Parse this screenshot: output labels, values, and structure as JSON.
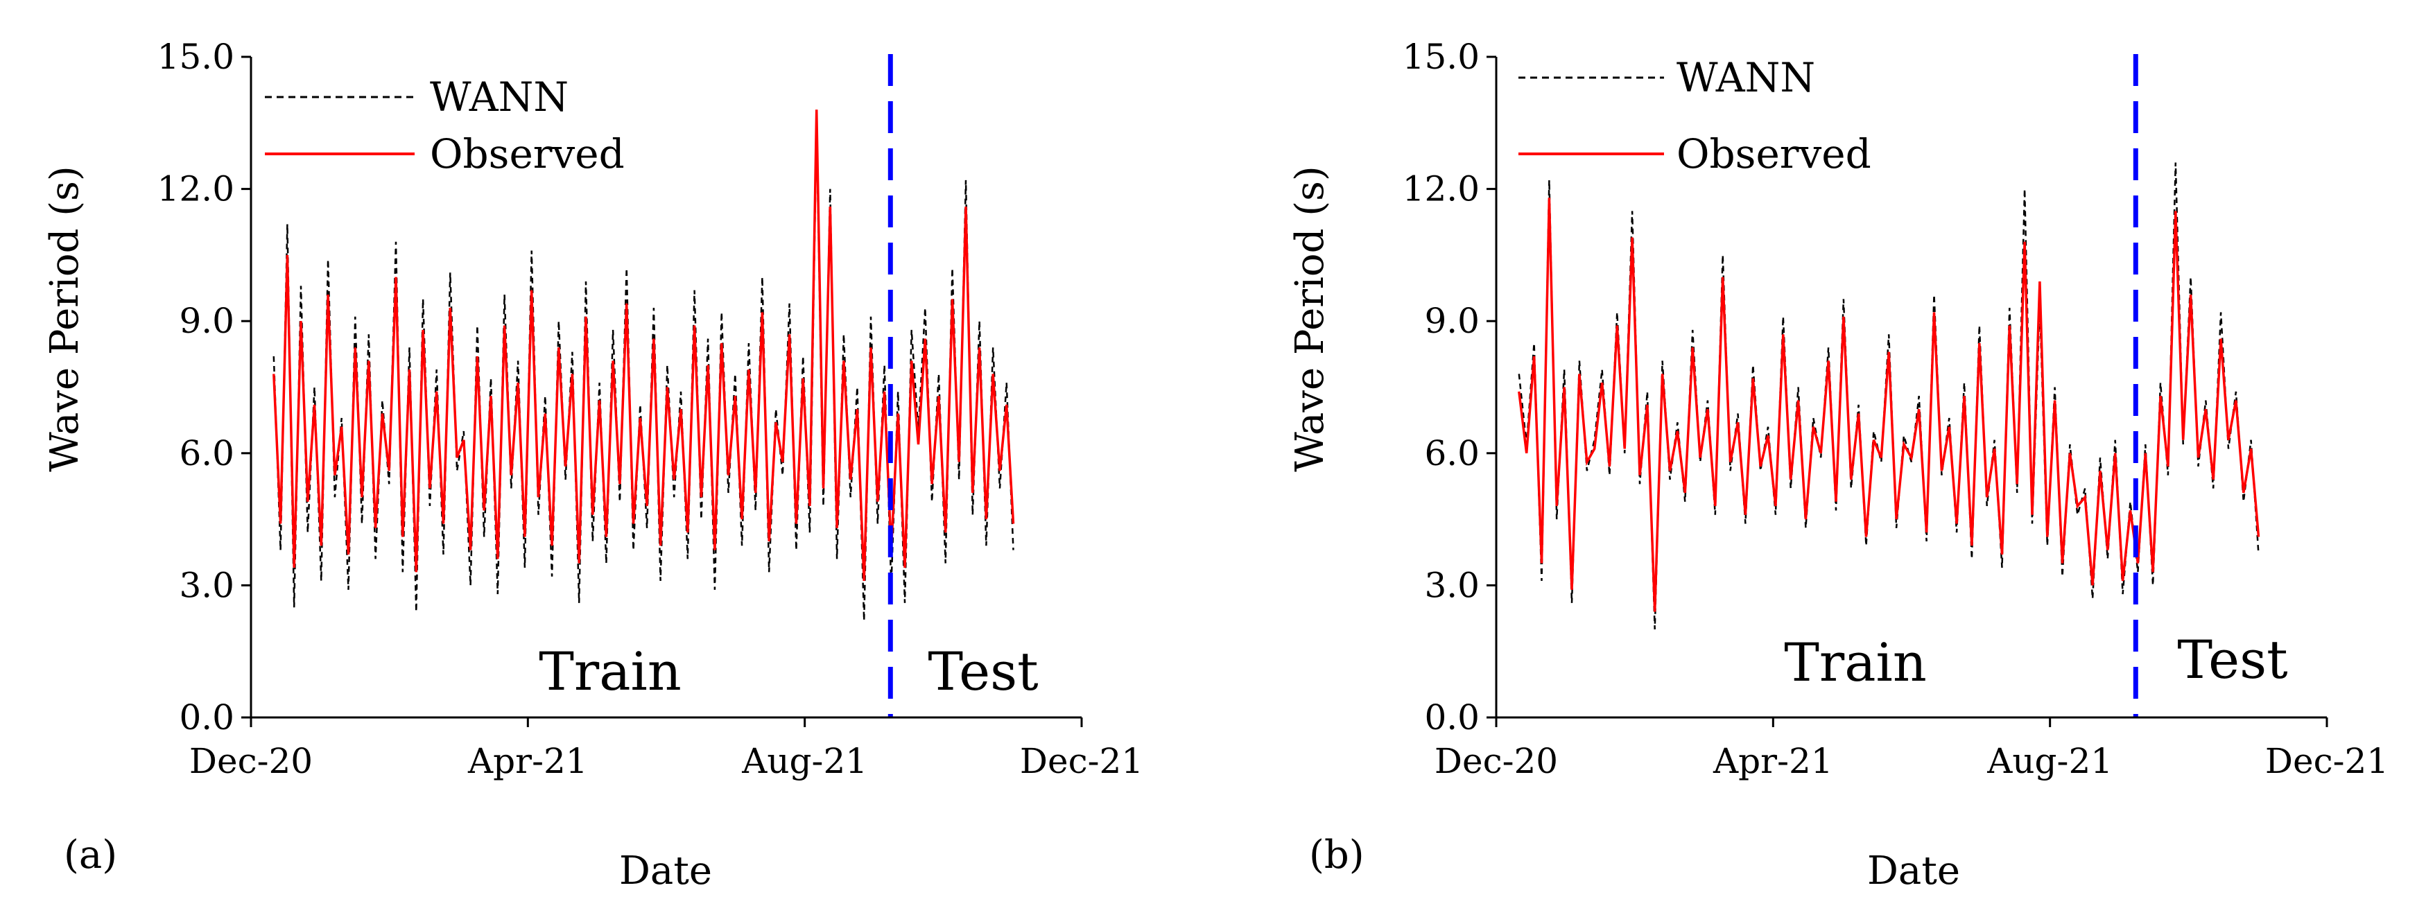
{
  "figure": {
    "panels": [
      "a",
      "b"
    ]
  },
  "chart_data": [
    {
      "panel_label": "(a)",
      "type": "line",
      "title": "",
      "xlabel": "Date",
      "ylabel": "Wave Period (s)",
      "x_ticks": [
        "Dec-20",
        "Apr-21",
        "Aug-21",
        "Dec-21"
      ],
      "y_ticks": [
        "0.0",
        "3.0",
        "6.0",
        "9.0",
        "12.0",
        "15.0"
      ],
      "ylim": [
        0,
        15
      ],
      "x_range": [
        "2020-12-01",
        "2021-12-01"
      ],
      "legend": {
        "position": "top-left",
        "entries": [
          "WANN",
          "Observed"
        ]
      },
      "split": {
        "date": "2021-09-08",
        "left_label": "Train",
        "right_label": "Test",
        "line_color": "#0000FF"
      },
      "data_start": "2020-12-11",
      "data_end": "2021-11-01",
      "series": [
        {
          "name": "WANN",
          "color": "#000000",
          "dash": "dashed",
          "values": [
            8.2,
            3.8,
            11.2,
            2.5,
            9.8,
            4.2,
            7.5,
            3.1,
            10.4,
            5.0,
            6.8,
            2.9,
            9.1,
            4.4,
            8.7,
            3.6,
            7.2,
            5.3,
            10.8,
            3.3,
            8.4,
            2.4,
            9.5,
            4.8,
            7.9,
            3.7,
            10.1,
            5.6,
            6.5,
            3.0,
            8.9,
            4.1,
            7.7,
            2.8,
            9.6,
            5.2,
            8.1,
            3.4,
            10.6,
            4.6,
            7.3,
            3.2,
            9.0,
            5.4,
            8.3,
            2.6,
            9.9,
            4.0,
            7.6,
            3.5,
            8.8,
            4.9,
            10.2,
            3.8,
            7.1,
            4.3,
            9.3,
            3.1,
            8.0,
            5.0,
            7.4,
            3.6,
            9.7,
            4.5,
            8.6,
            2.9,
            9.2,
            5.1,
            7.8,
            3.9,
            8.5,
            4.7,
            10.0,
            3.3,
            7.0,
            5.5,
            9.4,
            3.8,
            8.2,
            4.2,
            13.5,
            4.8,
            12.0,
            3.6,
            8.7,
            5.0,
            7.5,
            2.2,
            9.1,
            4.4,
            8.0,
            3.0,
            7.4,
            2.6,
            8.8,
            6.5,
            9.3,
            4.9,
            7.8,
            3.5,
            10.2,
            5.4,
            12.2,
            4.6,
            9.0,
            3.9,
            8.4,
            5.2,
            7.6,
            3.8
          ]
        },
        {
          "name": "Observed",
          "color": "#FF0000",
          "dash": "solid",
          "values": [
            7.8,
            4.4,
            10.5,
            3.4,
            9.0,
            4.9,
            7.1,
            3.9,
            9.6,
            5.5,
            6.6,
            3.7,
            8.4,
            5.0,
            8.1,
            4.3,
            6.9,
            5.6,
            10.0,
            4.1,
            7.9,
            3.3,
            8.8,
            5.2,
            7.4,
            4.4,
            9.3,
            5.9,
            6.3,
            3.8,
            8.2,
            4.7,
            7.3,
            3.6,
            8.9,
            5.5,
            7.6,
            4.1,
            9.7,
            5.0,
            6.9,
            3.9,
            8.4,
            5.7,
            7.8,
            3.5,
            9.1,
            4.6,
            7.2,
            4.1,
            8.1,
            5.3,
            9.4,
            4.4,
            6.8,
            4.8,
            8.6,
            3.9,
            7.5,
            5.4,
            7.0,
            4.2,
            8.9,
            5.0,
            8.0,
            3.8,
            8.5,
            5.5,
            7.3,
            4.5,
            7.9,
            5.1,
            9.2,
            4.0,
            6.7,
            5.8,
            8.7,
            4.4,
            7.7,
            4.8,
            13.8,
            5.2,
            11.6,
            4.3,
            8.1,
            5.4,
            7.0,
            3.1,
            8.4,
            4.9,
            7.4,
            3.8,
            6.9,
            3.4,
            8.1,
            6.2,
            8.6,
            5.3,
            7.3,
            4.2,
            9.5,
            5.8,
            11.6,
            5.1,
            8.4,
            4.5,
            7.8,
            5.6,
            7.1,
            4.4
          ]
        }
      ]
    },
    {
      "panel_label": "(b)",
      "type": "line",
      "title": "",
      "xlabel": "Date",
      "ylabel": "Wave Period (s)",
      "x_ticks": [
        "Dec-20",
        "Apr-21",
        "Aug-21",
        "Dec-21"
      ],
      "y_ticks": [
        "0.0",
        "3.0",
        "6.0",
        "9.0",
        "12.0",
        "15.0"
      ],
      "ylim": [
        0,
        15
      ],
      "x_range": [
        "2020-12-01",
        "2021-12-01"
      ],
      "legend": {
        "position": "top-left",
        "entries": [
          "WANN",
          "Observed"
        ]
      },
      "split": {
        "date": "2021-09-08",
        "left_label": "Train",
        "right_label": "Test",
        "line_color": "#0000FF"
      },
      "data_start": "2020-12-11",
      "data_end": "2021-11-01",
      "series": [
        {
          "name": "WANN",
          "color": "#000000",
          "dash": "dashed",
          "values": [
            7.8,
            6.2,
            8.5,
            3.1,
            12.2,
            4.5,
            7.9,
            2.6,
            8.1,
            5.6,
            6.3,
            7.9,
            5.5,
            9.2,
            6.0,
            11.5,
            5.3,
            7.4,
            2.0,
            8.1,
            5.4,
            6.7,
            4.9,
            8.8,
            5.8,
            7.2,
            4.6,
            10.5,
            5.6,
            6.9,
            4.4,
            8.0,
            5.6,
            6.6,
            4.6,
            9.1,
            5.2,
            7.5,
            4.3,
            6.8,
            5.9,
            8.4,
            4.7,
            9.5,
            5.2,
            7.1,
            3.9,
            6.5,
            5.8,
            8.7,
            4.3,
            6.4,
            5.8,
            7.3,
            4.0,
            9.6,
            5.5,
            6.8,
            4.2,
            7.6,
            3.6,
            8.9,
            4.8,
            6.3,
            3.4,
            9.3,
            5.1,
            12.0,
            4.4,
            9.4,
            3.9,
            7.5,
            3.2,
            6.2,
            4.6,
            5.2,
            2.7,
            5.9,
            3.6,
            6.3,
            2.8,
            4.9,
            3.3,
            6.2,
            3.0,
            7.6,
            5.5,
            12.6,
            6.2,
            10.0,
            5.7,
            7.2,
            5.2,
            9.2,
            6.1,
            7.4,
            4.9,
            6.3,
            3.7
          ]
        },
        {
          "name": "Observed",
          "color": "#FF0000",
          "dash": "solid",
          "values": [
            7.4,
            6.0,
            8.2,
            3.5,
            11.8,
            4.8,
            7.5,
            2.9,
            7.8,
            5.8,
            6.1,
            7.6,
            5.7,
            8.9,
            6.1,
            10.9,
            5.5,
            7.1,
            2.4,
            7.8,
            5.6,
            6.5,
            5.1,
            8.4,
            5.9,
            7.0,
            4.8,
            10.0,
            5.8,
            6.7,
            4.6,
            7.7,
            5.7,
            6.4,
            4.8,
            8.7,
            5.4,
            7.2,
            4.5,
            6.6,
            6.0,
            8.1,
            4.9,
            9.1,
            5.4,
            6.9,
            4.1,
            6.3,
            5.9,
            8.3,
            4.5,
            6.2,
            5.9,
            7.0,
            4.2,
            9.2,
            5.6,
            6.6,
            4.4,
            7.3,
            3.9,
            8.5,
            5.0,
            6.1,
            3.7,
            8.9,
            5.3,
            10.8,
            4.6,
            9.9,
            4.1,
            7.2,
            3.5,
            6.0,
            4.8,
            5.0,
            3.0,
            5.6,
            3.8,
            6.0,
            3.1,
            4.7,
            3.5,
            6.0,
            3.3,
            7.3,
            5.7,
            11.5,
            6.3,
            9.6,
            5.9,
            7.0,
            5.4,
            8.6,
            6.3,
            7.2,
            5.1,
            6.1,
            4.1
          ]
        }
      ]
    }
  ]
}
